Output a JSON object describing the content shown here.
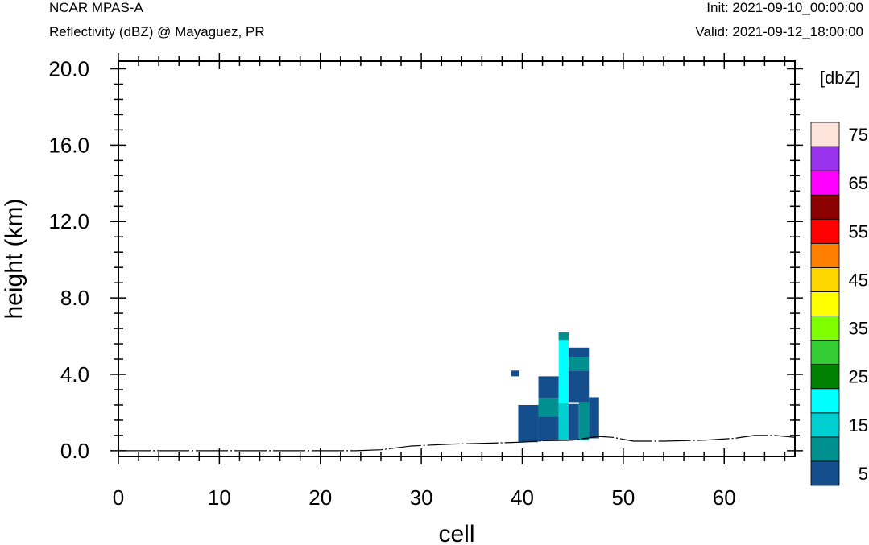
{
  "header": {
    "model": "NCAR MPAS-A",
    "subtitle": "Reflectivity (dBZ) @ Mayaguez, PR",
    "init": "Init: 2021-09-10_00:00:00",
    "valid": "Valid: 2021-09-12_18:00:00"
  },
  "chart_data": {
    "type": "heatmap",
    "xlabel": "cell",
    "ylabel": "height (km)",
    "xlim": [
      0,
      67
    ],
    "ylim": [
      -0.3,
      20.4
    ],
    "x_ticks": [
      0,
      10,
      20,
      30,
      40,
      50,
      60
    ],
    "x_tick_labels": [
      "0",
      "10",
      "20",
      "30",
      "40",
      "50",
      "60"
    ],
    "y_ticks": [
      0,
      4,
      8,
      12,
      16,
      20
    ],
    "y_tick_labels": [
      "0.0",
      "4.0",
      "8.0",
      "12.0",
      "16.0",
      "20.0"
    ],
    "grid": false,
    "colorbar": {
      "title": "[dbZ]",
      "bounds": [
        0,
        10,
        15,
        20,
        25,
        30,
        35,
        40,
        45,
        50,
        55,
        60,
        65,
        70,
        75,
        80
      ],
      "colors": [
        "#154e8c",
        "#009090",
        "#00cfd0",
        "#00ffff",
        "#008000",
        "#33cc33",
        "#80ff00",
        "#ffff00",
        "#ffd700",
        "#ff8000",
        "#ff0000",
        "#8b0000",
        "#ff00ff",
        "#9933ee",
        "#ffe4dc"
      ],
      "tick_labels": [
        "5",
        "15",
        "25",
        "35",
        "45",
        "55",
        "65",
        "75"
      ]
    },
    "terrain": [
      [
        0,
        0
      ],
      [
        23.5,
        0
      ],
      [
        26,
        0.05
      ],
      [
        29,
        0.25
      ],
      [
        33,
        0.35
      ],
      [
        37,
        0.4
      ],
      [
        40,
        0.45
      ],
      [
        43,
        0.55
      ],
      [
        45,
        0.55
      ],
      [
        47.5,
        0.75
      ],
      [
        49,
        0.7
      ],
      [
        51,
        0.5
      ],
      [
        54,
        0.5
      ],
      [
        58,
        0.55
      ],
      [
        61,
        0.65
      ],
      [
        63,
        0.8
      ],
      [
        65,
        0.8
      ],
      [
        67,
        0.7
      ]
    ],
    "cells": [
      {
        "x": [
          38.9,
          39.7
        ],
        "y": [
          3.9,
          4.2
        ],
        "dbz": 5
      },
      {
        "x": [
          39.6,
          41.6
        ],
        "y": [
          0.45,
          2.4
        ],
        "dbz": 5
      },
      {
        "x": [
          41.6,
          43.6
        ],
        "y": [
          0.5,
          1.8
        ],
        "dbz": 5
      },
      {
        "x": [
          41.6,
          43.6
        ],
        "y": [
          1.8,
          2.75
        ],
        "dbz": 10
      },
      {
        "x": [
          41.6,
          43.6
        ],
        "y": [
          2.75,
          3.9
        ],
        "dbz": 5
      },
      {
        "x": [
          43.6,
          44.6
        ],
        "y": [
          0.5,
          2.5
        ],
        "dbz": 15
      },
      {
        "x": [
          43.6,
          44.6
        ],
        "y": [
          2.5,
          5.8
        ],
        "dbz": 20
      },
      {
        "x": [
          43.6,
          44.6
        ],
        "y": [
          5.8,
          6.2
        ],
        "dbz": 10
      },
      {
        "x": [
          44.6,
          45.6
        ],
        "y": [
          0.55,
          2.45
        ],
        "dbz": 5
      },
      {
        "x": [
          45.6,
          46.6
        ],
        "y": [
          0.55,
          2.55
        ],
        "dbz": 10
      },
      {
        "x": [
          44.6,
          46.6
        ],
        "y": [
          2.55,
          4.2
        ],
        "dbz": 5
      },
      {
        "x": [
          44.6,
          46.6
        ],
        "y": [
          4.2,
          4.9
        ],
        "dbz": 10
      },
      {
        "x": [
          44.6,
          46.6
        ],
        "y": [
          4.9,
          5.4
        ],
        "dbz": 5
      },
      {
        "x": [
          46.6,
          47.6
        ],
        "y": [
          0.65,
          2.8
        ],
        "dbz": 5
      }
    ]
  }
}
